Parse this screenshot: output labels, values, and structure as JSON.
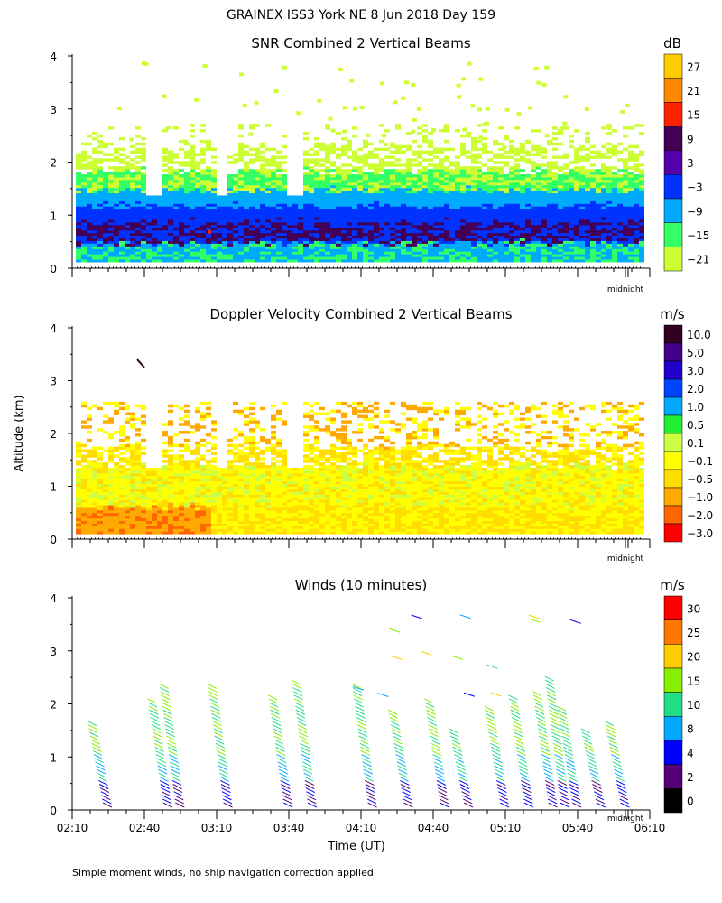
{
  "page": {
    "title": "GRAINEX ISS3 York NE   8 Jun 2018 Day 159",
    "footnote": "Simple moment winds, no ship navigation correction applied",
    "y_axis_label": "Altitude (km)",
    "x_axis_label": "Time (UT)",
    "midnight_label": "midnight"
  },
  "chart_data": [
    {
      "type": "heatmap",
      "title": "SNR Combined 2 Vertical Beams",
      "ylabel": "Altitude (km)",
      "ylim": [
        0,
        4
      ],
      "yticks": [
        "0",
        "1",
        "2",
        "3",
        "4"
      ],
      "x_range": [
        "02:10",
        "06:10"
      ],
      "legend": {
        "unit": "dB",
        "placement": "right",
        "labels": [
          "27",
          "21",
          "15",
          "9",
          "3",
          "−3",
          "−9",
          "−15",
          "−21"
        ],
        "colors": [
          "#ffcc00",
          "#ff8800",
          "#ff2200",
          "#440055",
          "#5500aa",
          "#0033ff",
          "#00aaff",
          "#33ff66",
          "#ccff33"
        ]
      },
      "approx_layers": [
        {
          "alt_km": [
            0.15,
            0.5
          ],
          "level_db": -9
        },
        {
          "alt_km": [
            0.5,
            0.9
          ],
          "level_db": 9
        },
        {
          "alt_km": [
            0.9,
            1.2
          ],
          "level_db": -3
        },
        {
          "alt_km": [
            1.2,
            1.5
          ],
          "level_db": -9
        },
        {
          "alt_km": [
            1.5,
            2.0
          ],
          "level_db": -15
        },
        {
          "alt_km": [
            2.0,
            2.6
          ],
          "level_db": -21
        }
      ]
    },
    {
      "type": "heatmap",
      "title": "Doppler Velocity Combined 2 Vertical Beams",
      "ylabel": "Altitude (km)",
      "ylim": [
        0,
        4
      ],
      "yticks": [
        "0",
        "1",
        "2",
        "3",
        "4"
      ],
      "x_range": [
        "02:10",
        "06:10"
      ],
      "legend": {
        "unit": "m/s",
        "placement": "right",
        "labels": [
          "10.0",
          "5.0",
          "3.0",
          "2.0",
          "1.0",
          "0.5",
          "0.1",
          "−0.1",
          "−0.5",
          "−1.0",
          "−2.0",
          "−3.0"
        ],
        "colors": [
          "#330022",
          "#440088",
          "#2200cc",
          "#0044ff",
          "#00aaff",
          "#22ee33",
          "#ccff44",
          "#ffff00",
          "#ffdd00",
          "#ffaa00",
          "#ff6600",
          "#ff0000"
        ]
      },
      "approx_layers": [
        {
          "alt_km": [
            0.1,
            0.6
          ],
          "level_ms": -0.5
        },
        {
          "alt_km": [
            0.6,
            1.4
          ],
          "level_ms": -0.1
        },
        {
          "alt_km": [
            1.4,
            2.5
          ],
          "level_ms": -0.1
        }
      ]
    },
    {
      "type": "scatter",
      "title": "Winds (10 minutes)",
      "ylabel": "Altitude (km)",
      "xlabel": "Time (UT)",
      "ylim": [
        0,
        4
      ],
      "yticks": [
        "0",
        "1",
        "2",
        "3",
        "4"
      ],
      "xticks": [
        "02:10",
        "02:40",
        "03:10",
        "03:40",
        "04:10",
        "04:40",
        "05:10",
        "05:40",
        "06:10"
      ],
      "legend": {
        "unit": "m/s",
        "placement": "right",
        "labels": [
          "30",
          "25",
          "20",
          "15",
          "10",
          "8",
          "4",
          "2",
          "0"
        ],
        "colors": [
          "#ff0000",
          "#ff7700",
          "#ffcc00",
          "#88ee00",
          "#22dd88",
          "#00aaff",
          "#0000ff",
          "#550077",
          "#000000"
        ]
      },
      "profile_times_min": [
        10,
        35,
        40,
        60,
        85,
        95,
        120,
        135,
        150,
        160,
        175,
        185,
        195,
        200,
        205,
        215,
        225
      ]
    }
  ]
}
